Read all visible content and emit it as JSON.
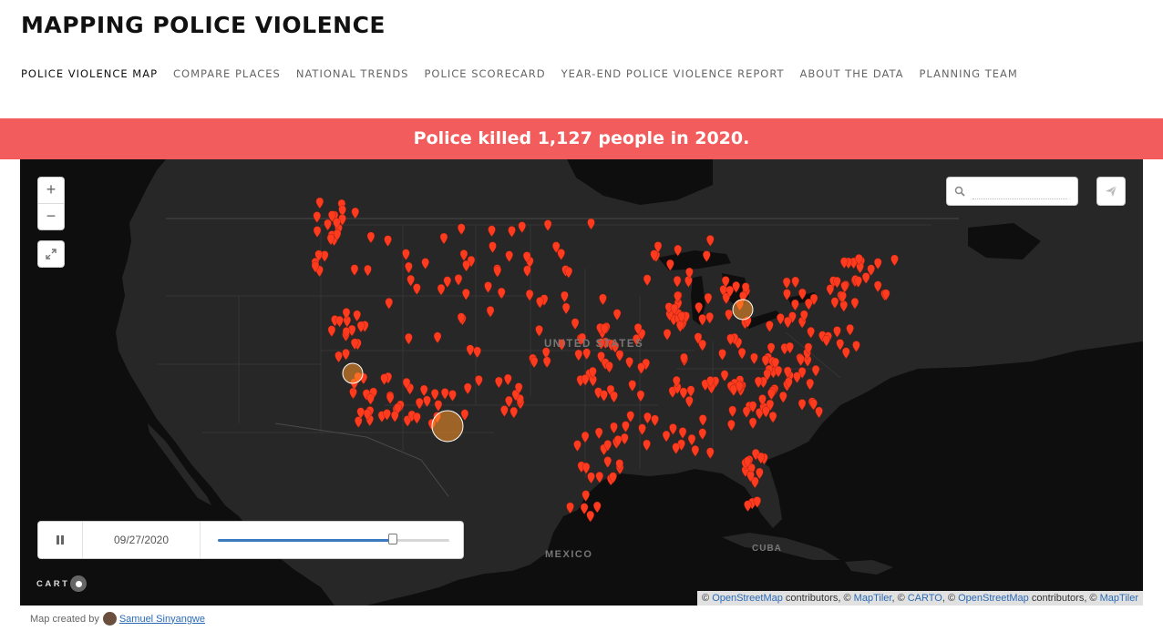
{
  "site": {
    "title": "MAPPING POLICE VIOLENCE"
  },
  "nav": {
    "items": [
      {
        "label": "POLICE VIOLENCE MAP"
      },
      {
        "label": "COMPARE PLACES"
      },
      {
        "label": "NATIONAL TRENDS"
      },
      {
        "label": "POLICE SCORECARD"
      },
      {
        "label": "YEAR-END POLICE VIOLENCE REPORT"
      },
      {
        "label": "ABOUT THE DATA"
      },
      {
        "label": "PLANNING TEAM"
      }
    ]
  },
  "banner": {
    "text": "Police killed 1,127 people in 2020."
  },
  "map": {
    "country_label": "UNITED STATES",
    "mexico_label": "MEXICO",
    "cuba_label": "CUBA",
    "zoom_in": "+",
    "zoom_out": "−",
    "fullscreen_icon": "expand-arrows-icon",
    "search_icon": "magnifier-icon",
    "search_placeholder": "",
    "share_icon": "paper-plane-icon",
    "marker_color": "#ff3b1f"
  },
  "timeslider": {
    "play_state_icon": "pause-icon",
    "date": "09/27/2020",
    "progress": 0.75
  },
  "carto_logo": {
    "text": "CART"
  },
  "attribution": {
    "copyright": "©",
    "osm": "OpenStreetMap",
    "contributors": "contributors, ©",
    "maptiler": "MapTiler",
    "sep1": ", ©",
    "carto": "CARTO",
    "sep2": ", ©",
    "osm2": "OpenStreetMap",
    "contributors2": "contributors, ©",
    "maptiler2": "MapTiler"
  },
  "credit": {
    "prefix": "Map created by",
    "author": "Samuel Sinyangwe"
  }
}
